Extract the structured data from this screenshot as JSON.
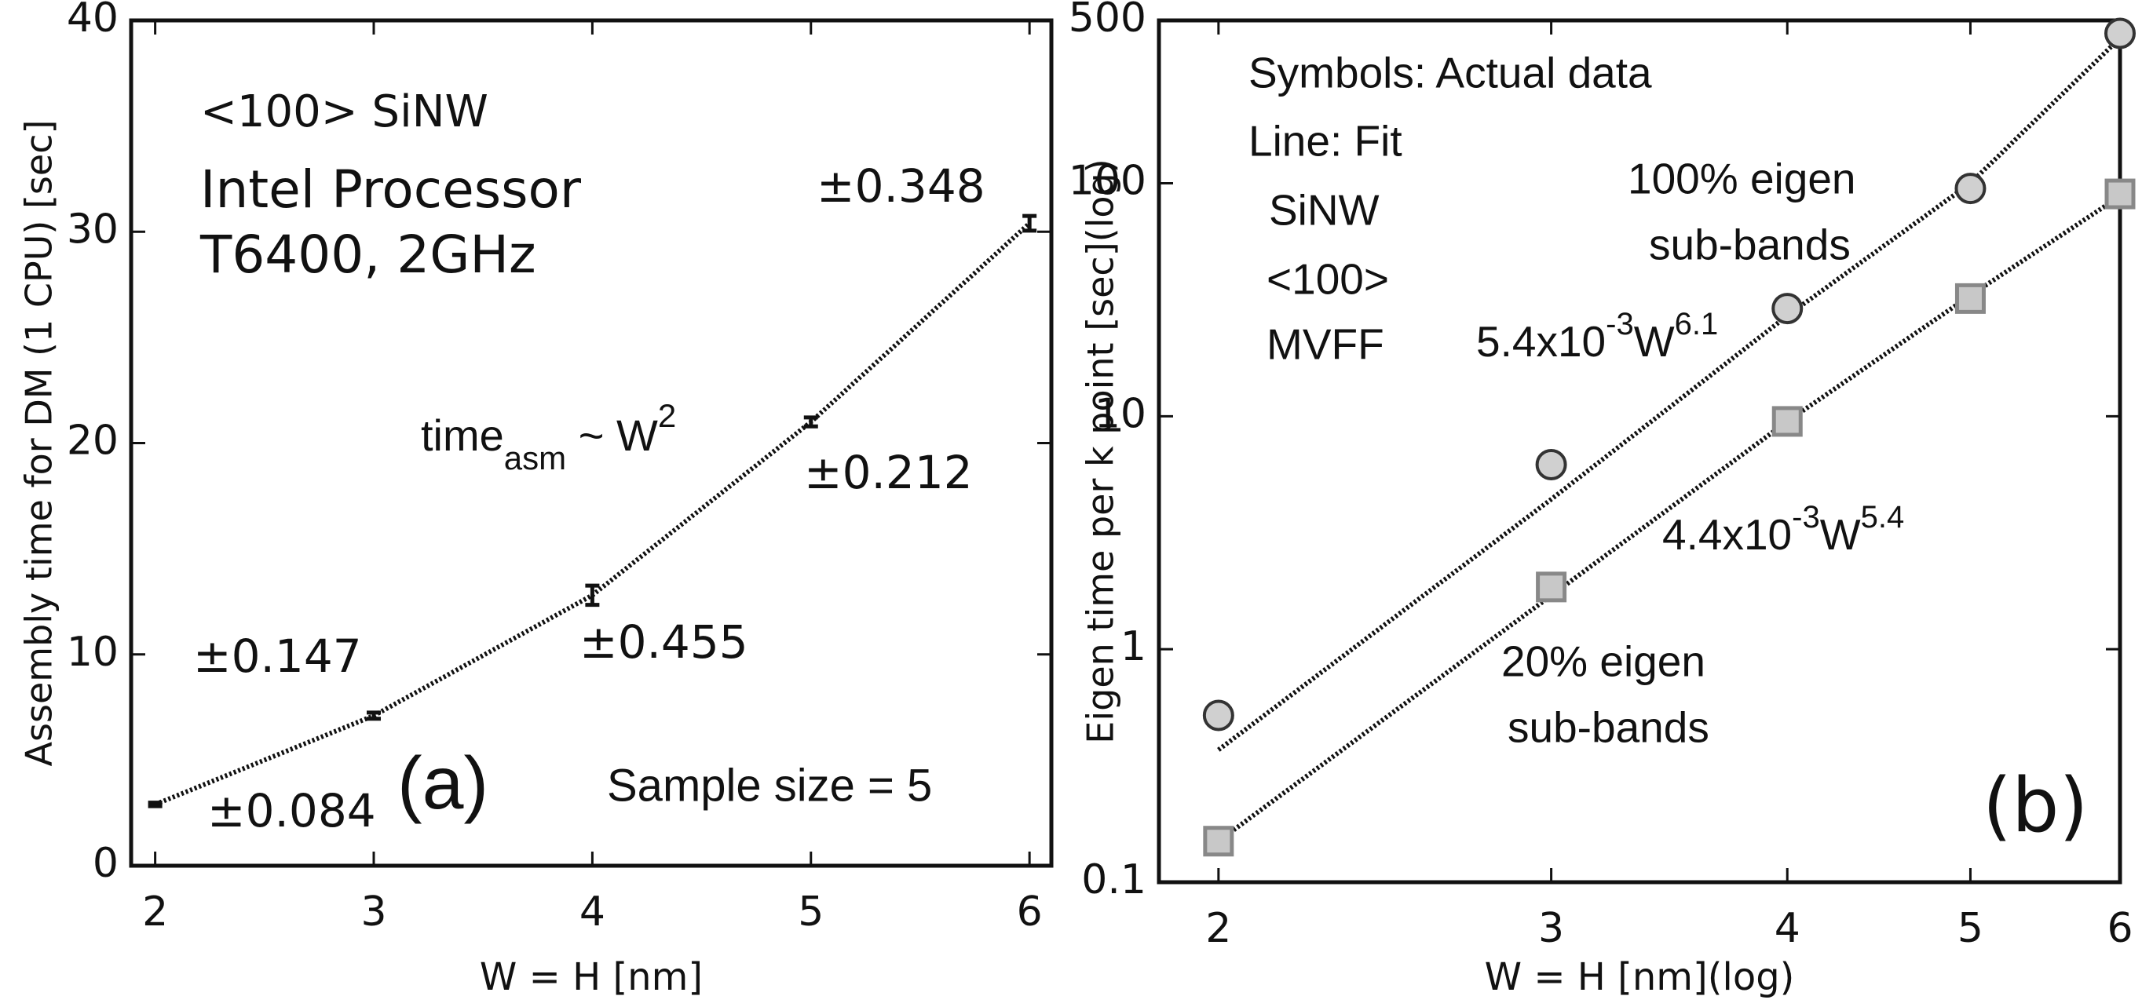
{
  "chart_data": [
    {
      "type": "line",
      "x_label": "W = H [nm]",
      "y_label": "Assembly  time for DM (1 CPU) [sec]",
      "x": [
        2,
        3,
        4,
        5,
        6
      ],
      "values": [
        2.9,
        7.1,
        12.8,
        21,
        30.4
      ],
      "errors": [
        0.084,
        0.147,
        0.455,
        0.212,
        0.348
      ],
      "error_labels": [
        "±0.084",
        "±0.147",
        "±0.455",
        "±0.212",
        "±0.348"
      ],
      "color": "#111",
      "xlim": [
        1.89,
        6.1
      ],
      "ylim": [
        0,
        40
      ],
      "xticks": [
        2,
        3,
        4,
        5,
        6
      ],
      "yticks": [
        0,
        10,
        20,
        30,
        40
      ],
      "annotations": [
        "<100> SiNW",
        "Intel Processor",
        "T6400, 2GHz",
        "Sample size = 5",
        "(a)"
      ],
      "formula": {
        "base": "time",
        "sub": "asm",
        "mid": " ~ W",
        "sup": "2"
      }
    },
    {
      "type": "scatter",
      "x_scale": "log",
      "y_scale": "log",
      "x_label": "W = H [nm](log)",
      "y_label": "Eigen time per k point [sec](log)",
      "x": [
        2,
        3,
        4,
        5,
        6
      ],
      "series": [
        {
          "name": "100% eigen sub-bands",
          "marker": "circle",
          "color": "#d0d0d0",
          "values": [
            0.52,
            6.2,
            29,
            95,
            440
          ]
        },
        {
          "name": "20% eigen sub-bands",
          "marker": "square",
          "color": "#c8c8c8",
          "values": [
            0.15,
            1.85,
            9.5,
            32,
            90
          ]
        }
      ],
      "fits": [
        {
          "values": [
            0.37,
            4.4,
            27,
            100,
            420
          ],
          "label": {
            "base": "5.4x10",
            "e1": "-3",
            "mid": "W",
            "e2": "6.1"
          }
        },
        {
          "values": [
            0.15,
            1.7,
            9.5,
            33,
            88
          ],
          "label": {
            "base": "4.4x10",
            "e1": "-3",
            "mid": "W",
            "e2": "5.4"
          }
        }
      ],
      "xlim": [
        1.86,
        6
      ],
      "ylim": [
        0.1,
        500
      ],
      "xticks": [
        2,
        3,
        4,
        5,
        6
      ],
      "yticks": [
        0.1,
        1,
        10,
        100,
        500
      ],
      "annotations": [
        "Symbols: Actual data",
        "Line: Fit",
        "SiNW",
        "<100>",
        "MVFF",
        "100% eigen",
        "sub-bands",
        "20% eigen",
        "sub-bands",
        "(b)"
      ]
    }
  ]
}
